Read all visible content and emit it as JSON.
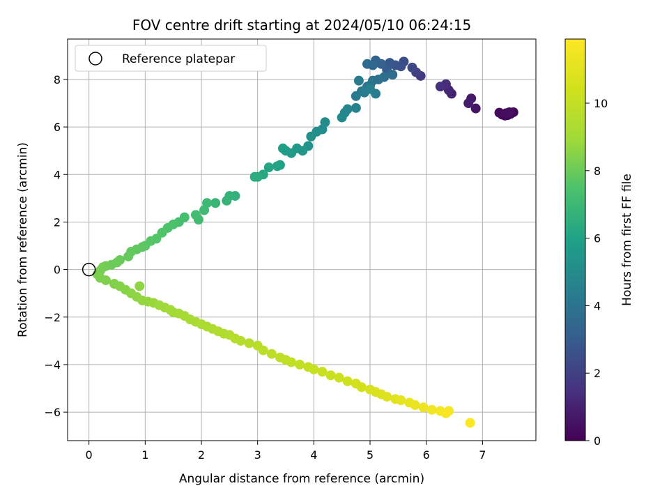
{
  "chart_data": {
    "type": "scatter",
    "title": "FOV centre drift starting at 2024/05/10 06:24:15",
    "xlabel": "Angular distance from reference (arcmin)",
    "ylabel": "Rotation from reference (arcmin)",
    "xlim": [
      -0.38,
      7.95
    ],
    "ylim": [
      -7.2,
      9.7
    ],
    "xticks": [
      0,
      1,
      2,
      3,
      4,
      5,
      6,
      7
    ],
    "yticks": [
      -6,
      -4,
      -2,
      0,
      2,
      4,
      6,
      8
    ],
    "grid": true,
    "legend": {
      "placement": "top-left",
      "entries": [
        "Reference platepar"
      ]
    },
    "reference_point": {
      "x": 0,
      "y": 0,
      "label": "Reference platepar"
    },
    "colorbar": {
      "label": "Hours from first FF file",
      "colormap": "viridis",
      "range": [
        0,
        11.9
      ],
      "ticks": [
        0,
        2,
        4,
        6,
        8,
        10
      ]
    },
    "series": [
      {
        "columns": [
          "x",
          "y",
          "hours"
        ],
        "points": [
          [
            7.55,
            6.62,
            0.05
          ],
          [
            7.5,
            6.55,
            0.1
          ],
          [
            7.45,
            6.5,
            0.15
          ],
          [
            7.4,
            6.48,
            0.2
          ],
          [
            7.35,
            6.52,
            0.25
          ],
          [
            7.3,
            6.6,
            0.3
          ],
          [
            7.42,
            6.58,
            0.35
          ],
          [
            7.48,
            6.62,
            0.4
          ],
          [
            6.88,
            6.78,
            0.6
          ],
          [
            6.8,
            7.2,
            0.75
          ],
          [
            6.75,
            7.0,
            0.85
          ],
          [
            6.45,
            7.4,
            1.0
          ],
          [
            6.4,
            7.55,
            1.15
          ],
          [
            6.35,
            7.8,
            1.3
          ],
          [
            6.25,
            7.7,
            1.45
          ],
          [
            5.9,
            8.15,
            1.8
          ],
          [
            5.82,
            8.3,
            2.0
          ],
          [
            5.75,
            8.5,
            2.2
          ],
          [
            5.6,
            8.75,
            2.4
          ],
          [
            5.55,
            8.55,
            2.55
          ],
          [
            5.45,
            8.6,
            2.7
          ],
          [
            5.35,
            8.7,
            2.85
          ],
          [
            5.3,
            8.4,
            3.0
          ],
          [
            5.2,
            8.65,
            3.2
          ],
          [
            5.1,
            8.8,
            3.35
          ],
          [
            5.05,
            8.6,
            3.5
          ],
          [
            4.95,
            8.65,
            3.6
          ],
          [
            5.4,
            8.2,
            3.7
          ],
          [
            5.25,
            8.1,
            3.8
          ],
          [
            5.15,
            8.0,
            3.9
          ],
          [
            5.05,
            7.95,
            4.0
          ],
          [
            5.0,
            7.75,
            4.05
          ],
          [
            4.95,
            7.7,
            4.1
          ],
          [
            4.85,
            7.5,
            4.2
          ],
          [
            4.75,
            7.3,
            4.25
          ],
          [
            4.8,
            7.95,
            4.3
          ],
          [
            4.9,
            7.45,
            4.35
          ],
          [
            5.1,
            7.4,
            4.4
          ],
          [
            5.0,
            7.6,
            4.45
          ],
          [
            4.75,
            6.8,
            4.6
          ],
          [
            4.6,
            6.75,
            4.7
          ],
          [
            4.55,
            6.6,
            4.75
          ],
          [
            4.5,
            6.4,
            4.85
          ],
          [
            4.2,
            6.2,
            4.95
          ],
          [
            4.15,
            5.9,
            5.05
          ],
          [
            4.05,
            5.8,
            5.15
          ],
          [
            3.95,
            5.6,
            5.25
          ],
          [
            3.9,
            5.2,
            5.35
          ],
          [
            3.8,
            5.0,
            5.45
          ],
          [
            3.7,
            5.1,
            5.55
          ],
          [
            3.6,
            4.9,
            5.65
          ],
          [
            3.5,
            5.0,
            5.75
          ],
          [
            3.45,
            5.1,
            5.85
          ],
          [
            3.4,
            4.4,
            5.95
          ],
          [
            3.35,
            4.35,
            6.05
          ],
          [
            3.2,
            4.3,
            6.15
          ],
          [
            3.1,
            4.0,
            6.25
          ],
          [
            3.0,
            3.9,
            6.35
          ],
          [
            2.95,
            3.9,
            6.4
          ],
          [
            2.6,
            3.1,
            6.6
          ],
          [
            2.5,
            3.1,
            6.7
          ],
          [
            2.45,
            2.9,
            6.8
          ],
          [
            2.25,
            2.8,
            6.9
          ],
          [
            2.1,
            2.8,
            7.0
          ],
          [
            2.05,
            2.5,
            7.05
          ],
          [
            1.95,
            2.1,
            7.15
          ],
          [
            1.9,
            2.3,
            7.2
          ],
          [
            1.7,
            2.2,
            7.3
          ],
          [
            1.6,
            2.0,
            7.35
          ],
          [
            1.5,
            1.9,
            7.45
          ],
          [
            1.4,
            1.75,
            7.5
          ],
          [
            1.3,
            1.55,
            7.55
          ],
          [
            1.2,
            1.3,
            7.6
          ],
          [
            1.1,
            1.2,
            7.65
          ],
          [
            1.0,
            1.0,
            7.7
          ],
          [
            0.95,
            0.95,
            7.75
          ],
          [
            0.85,
            0.85,
            7.8
          ],
          [
            0.75,
            0.75,
            7.85
          ],
          [
            0.7,
            0.55,
            7.9
          ],
          [
            0.55,
            0.4,
            7.95
          ],
          [
            0.5,
            0.3,
            8.0
          ],
          [
            0.4,
            0.2,
            8.05
          ],
          [
            0.3,
            0.15,
            8.1
          ],
          [
            0.25,
            0.1,
            8.15
          ],
          [
            0.2,
            -0.05,
            8.2
          ],
          [
            0.15,
            -0.2,
            8.25
          ],
          [
            0.2,
            -0.35,
            8.3
          ],
          [
            0.3,
            -0.45,
            8.35
          ],
          [
            0.45,
            -0.6,
            8.4
          ],
          [
            0.55,
            -0.7,
            8.45
          ],
          [
            0.65,
            -0.85,
            8.5
          ],
          [
            0.75,
            -1.0,
            8.55
          ],
          [
            0.9,
            -0.7,
            8.6
          ],
          [
            0.85,
            -1.15,
            8.65
          ],
          [
            0.95,
            -1.3,
            8.7
          ],
          [
            1.05,
            -1.35,
            8.75
          ],
          [
            1.15,
            -1.4,
            8.8
          ],
          [
            1.25,
            -1.5,
            8.85
          ],
          [
            1.35,
            -1.6,
            8.9
          ],
          [
            1.45,
            -1.7,
            8.95
          ],
          [
            1.5,
            -1.8,
            9.0
          ],
          [
            1.6,
            -1.85,
            9.05
          ],
          [
            1.7,
            -1.95,
            9.1
          ],
          [
            1.8,
            -2.1,
            9.15
          ],
          [
            1.9,
            -2.2,
            9.2
          ],
          [
            2.0,
            -2.3,
            9.25
          ],
          [
            2.1,
            -2.4,
            9.3
          ],
          [
            2.2,
            -2.5,
            9.35
          ],
          [
            2.3,
            -2.6,
            9.4
          ],
          [
            2.4,
            -2.7,
            9.45
          ],
          [
            2.5,
            -2.75,
            9.5
          ],
          [
            2.6,
            -2.9,
            9.55
          ],
          [
            2.7,
            -3.0,
            9.6
          ],
          [
            2.85,
            -3.1,
            9.65
          ],
          [
            3.0,
            -3.2,
            9.7
          ],
          [
            3.1,
            -3.4,
            9.75
          ],
          [
            3.25,
            -3.55,
            9.8
          ],
          [
            3.4,
            -3.7,
            9.85
          ],
          [
            3.5,
            -3.8,
            9.9
          ],
          [
            3.6,
            -3.9,
            9.95
          ],
          [
            3.75,
            -4.0,
            10.0
          ],
          [
            3.9,
            -4.1,
            10.05
          ],
          [
            4.0,
            -4.2,
            10.1
          ],
          [
            4.15,
            -4.3,
            10.15
          ],
          [
            4.3,
            -4.45,
            10.2
          ],
          [
            4.45,
            -4.55,
            10.3
          ],
          [
            4.6,
            -4.7,
            10.35
          ],
          [
            4.75,
            -4.8,
            10.45
          ],
          [
            4.85,
            -4.95,
            10.5
          ],
          [
            5.0,
            -5.05,
            10.6
          ],
          [
            5.1,
            -5.15,
            10.7
          ],
          [
            5.2,
            -5.25,
            10.8
          ],
          [
            5.3,
            -5.35,
            10.9
          ],
          [
            5.45,
            -5.45,
            11.0
          ],
          [
            5.55,
            -5.5,
            11.1
          ],
          [
            5.7,
            -5.6,
            11.2
          ],
          [
            5.8,
            -5.7,
            11.3
          ],
          [
            5.95,
            -5.8,
            11.4
          ],
          [
            6.1,
            -5.9,
            11.5
          ],
          [
            6.25,
            -5.95,
            11.6
          ],
          [
            6.35,
            -6.05,
            11.7
          ],
          [
            6.4,
            -5.95,
            11.75
          ],
          [
            6.78,
            -6.45,
            11.9
          ]
        ]
      }
    ]
  }
}
